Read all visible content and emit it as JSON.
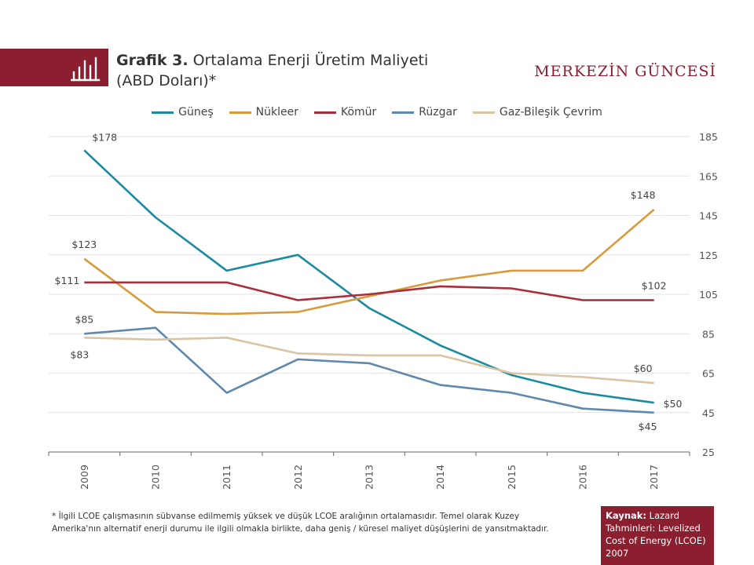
{
  "header": {
    "title_bold": "Grafik 3.",
    "title_rest": " Ortalama Enerji Üretim Maliyeti",
    "title_line2": "(ABD Doları)*",
    "brand": "MERKEZİN GÜNCESİ",
    "icon": "bar-chart-icon"
  },
  "colors": {
    "accent": "#8b1e2f",
    "grid": "#e3e3e3"
  },
  "chart_data": {
    "type": "line",
    "x": [
      "2009",
      "2010",
      "2011",
      "2012",
      "2013",
      "2014",
      "2015",
      "2016",
      "2017"
    ],
    "ylim": [
      25,
      185
    ],
    "yticks": [
      25,
      45,
      65,
      85,
      105,
      125,
      145,
      165,
      185
    ],
    "y_axis_side": "right",
    "grid": true,
    "legend_position": "top",
    "series": [
      {
        "name": "Güneş",
        "color": "#1a8aa0",
        "values": [
          178,
          144,
          117,
          125,
          98,
          79,
          64,
          55,
          50
        ]
      },
      {
        "name": "Nükleer",
        "color": "#d89a3a",
        "values": [
          123,
          96,
          95,
          96,
          104,
          112,
          117,
          117,
          148
        ]
      },
      {
        "name": "Kömür",
        "color": "#a92d3a",
        "values": [
          111,
          111,
          111,
          102,
          105,
          109,
          108,
          102,
          102
        ]
      },
      {
        "name": "Rüzgar",
        "color": "#5f88ad",
        "values": [
          85,
          88,
          55,
          72,
          70,
          59,
          55,
          47,
          45
        ]
      },
      {
        "name": "Gaz-Bileşik Çevrim",
        "color": "#d9c4a3",
        "values": [
          83,
          82,
          83,
          75,
          74,
          74,
          65,
          63,
          60
        ]
      }
    ],
    "annotations": [
      {
        "text": "$178",
        "series": 0,
        "index": 0,
        "pos": "above-right"
      },
      {
        "text": "$123",
        "series": 1,
        "index": 0,
        "pos": "above"
      },
      {
        "text": "$111",
        "series": 2,
        "index": 0,
        "pos": "left"
      },
      {
        "text": "$85",
        "series": 3,
        "index": 0,
        "pos": "above"
      },
      {
        "text": "$83",
        "series": 4,
        "index": 0,
        "pos": "below"
      },
      {
        "text": "$148",
        "series": 1,
        "index": 8,
        "pos": "above-left"
      },
      {
        "text": "$102",
        "series": 2,
        "index": 8,
        "pos": "above"
      },
      {
        "text": "$60",
        "series": 4,
        "index": 8,
        "pos": "above-left"
      },
      {
        "text": "$50",
        "series": 0,
        "index": 8,
        "pos": "right"
      },
      {
        "text": "$45",
        "series": 3,
        "index": 8,
        "pos": "below-left"
      }
    ]
  },
  "footnote": "* İlgili LCOE çalışmasının sübvanse edilmemiş yüksek ve düşük LCOE aralığının ortalamasıdır. Temel olarak Kuzey Amerika'nın alternatif enerji durumu ile ilgili olmakla birlikte, daha geniş / küresel maliyet düşüşlerini de yansıtmaktadır.",
  "source": {
    "label": "Kaynak:",
    "text": " Lazard Tahminleri: Levelized Cost of Energy (LCOE) 2007"
  }
}
